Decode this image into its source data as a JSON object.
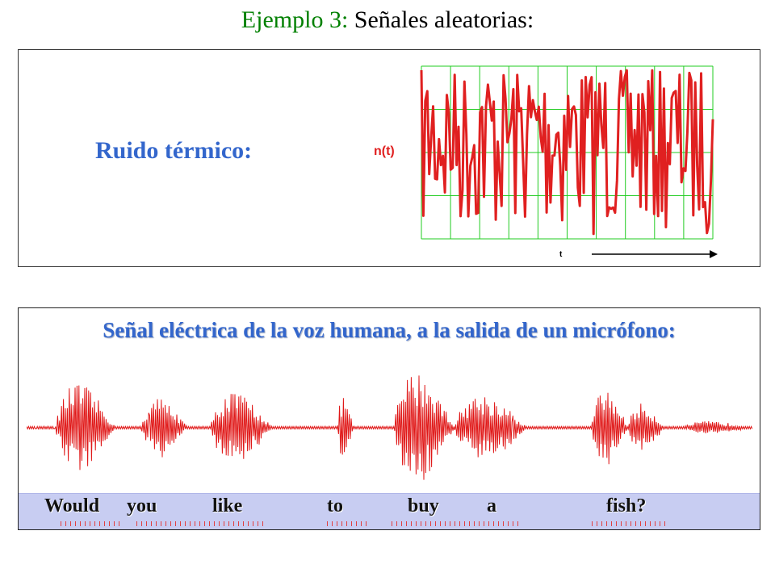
{
  "title": {
    "prefix": "Ejemplo 3:",
    "rest": "Señales aleatorias:"
  },
  "noise_panel": {
    "label": "Ruido térmico:",
    "y_label": "n(t)",
    "x_label": "t"
  },
  "voice_panel": {
    "title": "Señal eléctrica de la voz humana, a la salida de un micrófono:",
    "words": [
      "Would",
      "you",
      "like",
      "to",
      "buy",
      "a",
      "fish?"
    ]
  },
  "colors": {
    "title_accent": "#008000",
    "label_blue": "#3366cc",
    "signal_red": "#e02020",
    "grid_green": "#22cc22",
    "word_band": "#c8cdf2"
  }
}
